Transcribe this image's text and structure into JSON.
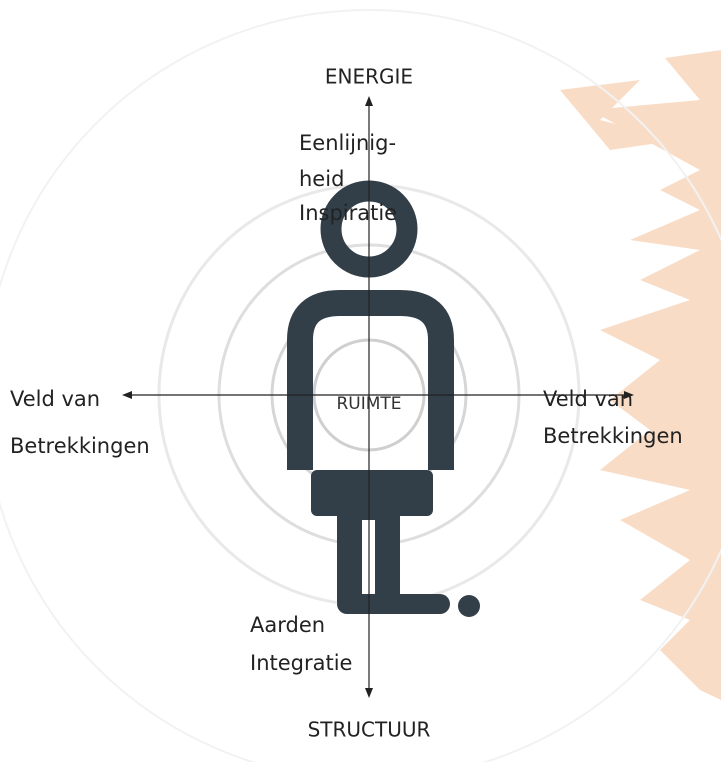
{
  "axes": {
    "top": "ENERGIE",
    "bottom": "STRUCTUUR",
    "center": "RUIMTE"
  },
  "labels": {
    "top": [
      "Eenlijnig-",
      "heid",
      "Inspiratie"
    ],
    "left": [
      "Veld van",
      "Betrekkingen"
    ],
    "right": [
      "Veld van",
      "Betrekkingen"
    ],
    "bottom": [
      "Aarden",
      "Integratie"
    ]
  }
}
